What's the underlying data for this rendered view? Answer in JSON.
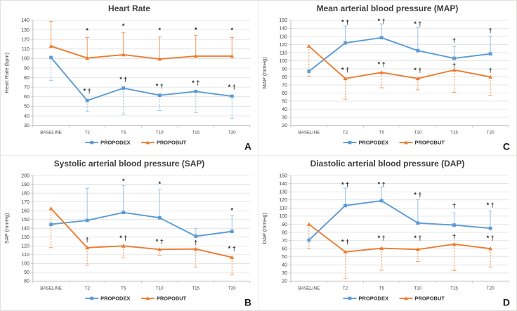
{
  "figure": {
    "panels_order": [
      "A",
      "C",
      "B",
      "D"
    ],
    "colors": {
      "propodex": "#5B9BD5",
      "propobut": "#ED7D31",
      "err_propodex": "#9DC3E6",
      "err_propobut": "#F09A5D",
      "gridline": "#DCDCDC",
      "axis": "#BFBFBF",
      "text": "#404040",
      "annotation": "#262626",
      "panel_letter": "#1A1A1A"
    },
    "legend_labels": [
      "PROPODEX",
      "PROPOBUT"
    ]
  },
  "chart_data": [
    {
      "panel_label": "A",
      "type": "line",
      "title": "Heart Rate",
      "ylabel": "Heart Rate (bpm)",
      "xlabel": "",
      "ylim": [
        30,
        140
      ],
      "ytick_step": 10,
      "grid": true,
      "legend_position": "bottom",
      "categories": [
        "BASELINE",
        "T2",
        "T5",
        "T10",
        "T15",
        "T20"
      ],
      "series": [
        {
          "name": "PROPODEX",
          "color": "#5B9BD5",
          "err_color": "#9DC3E6",
          "marker": "square",
          "values": [
            101,
            56,
            69,
            61.5,
            65.5,
            60.5
          ],
          "err_hi": [
            null,
            null,
            null,
            null,
            null,
            null
          ],
          "err_lo": [
            77,
            44.5,
            41.5,
            45.5,
            43.5,
            37.5
          ]
        },
        {
          "name": "PROPOBUT",
          "color": "#ED7D31",
          "err_color": "#F09A5D",
          "marker": "triangle",
          "values": [
            113,
            100.5,
            104,
            99.5,
            102.5,
            102.5
          ],
          "err_hi": [
            139,
            122,
            127,
            122.5,
            124,
            122
          ],
          "err_lo": [
            null,
            null,
            null,
            null,
            null,
            null
          ]
        }
      ],
      "annotations": [
        {
          "x": "T2",
          "y": 129,
          "text": "*"
        },
        {
          "x": "T5",
          "y": 134,
          "text": "*"
        },
        {
          "x": "T10",
          "y": 129.5,
          "text": "*"
        },
        {
          "x": "T15",
          "y": 130,
          "text": "*"
        },
        {
          "x": "T20",
          "y": 129.5,
          "text": "*"
        },
        {
          "x": "T2",
          "y": 66,
          "text": "* †"
        },
        {
          "x": "T5",
          "y": 78,
          "text": "* †"
        },
        {
          "x": "T10",
          "y": 71,
          "text": "* †"
        },
        {
          "x": "T15",
          "y": 74.5,
          "text": "* †"
        },
        {
          "x": "T20",
          "y": 70,
          "text": "* †"
        }
      ]
    },
    {
      "panel_label": "B",
      "type": "line",
      "title": "Systolic arterial blood pressure (SAP)",
      "ylabel": "SAP (mmHg)",
      "xlabel": "",
      "ylim": [
        80,
        200
      ],
      "ytick_step": 10,
      "grid": true,
      "legend_position": "bottom",
      "categories": [
        "BASELINE",
        "T2",
        "T5",
        "T10",
        "T15",
        "T20"
      ],
      "series": [
        {
          "name": "PROPODEX",
          "color": "#5B9BD5",
          "err_color": "#9DC3E6",
          "marker": "square",
          "values": [
            144.5,
            149,
            158,
            152,
            131,
            136.5
          ],
          "err_hi": [
            null,
            185.5,
            188.5,
            184,
            140,
            154.5
          ],
          "err_lo": [
            null,
            null,
            null,
            null,
            null,
            null
          ]
        },
        {
          "name": "PROPOBUT",
          "color": "#ED7D31",
          "err_color": "#F09A5D",
          "marker": "triangle",
          "values": [
            162.5,
            118,
            120,
            116,
            116.5,
            107
          ],
          "err_hi": [
            null,
            null,
            null,
            null,
            null,
            null
          ],
          "err_lo": [
            118,
            98,
            106.5,
            109.5,
            96,
            87
          ]
        }
      ],
      "annotations": [
        {
          "x": "T5",
          "y": 193.5,
          "text": "*"
        },
        {
          "x": "T10",
          "y": 190.5,
          "text": "*"
        },
        {
          "x": "T20",
          "y": 160.5,
          "text": "*"
        },
        {
          "x": "T2",
          "y": 127,
          "text": "†"
        },
        {
          "x": "T5",
          "y": 129,
          "text": "* †"
        },
        {
          "x": "T10",
          "y": 125,
          "text": "* †"
        },
        {
          "x": "T15",
          "y": 123.5,
          "text": "†"
        },
        {
          "x": "T20",
          "y": 117,
          "text": "* †"
        }
      ]
    },
    {
      "panel_label": "C",
      "type": "line",
      "title": "Mean arterial blood pressure (MAP)",
      "ylabel": "MAP (mmHg)",
      "xlabel": "",
      "ylim": [
        20,
        150
      ],
      "ytick_step": 10,
      "grid": true,
      "legend_position": "bottom",
      "categories": [
        "BASELINE",
        "T2",
        "T5",
        "T10",
        "T15",
        "T20"
      ],
      "series": [
        {
          "name": "PROPODEX",
          "color": "#5B9BD5",
          "err_color": "#9DC3E6",
          "marker": "square",
          "values": [
            87,
            122,
            128.5,
            112.5,
            103,
            108.5
          ],
          "err_hi": [
            null,
            143,
            145.5,
            141,
            117.5,
            130.5
          ],
          "err_lo": [
            null,
            null,
            null,
            null,
            null,
            null
          ]
        },
        {
          "name": "PROPOBUT",
          "color": "#ED7D31",
          "err_color": "#F09A5D",
          "marker": "triangle",
          "values": [
            118,
            78,
            85.5,
            78,
            88.5,
            80
          ],
          "err_hi": [
            null,
            null,
            null,
            null,
            null,
            null
          ],
          "err_lo": [
            81,
            52.5,
            66.5,
            64,
            61,
            57
          ]
        }
      ],
      "annotations": [
        {
          "x": "T2",
          "y": 147.5,
          "text": "* †"
        },
        {
          "x": "T5",
          "y": 149,
          "text": "* †"
        },
        {
          "x": "T10",
          "y": 145.5,
          "text": "* †"
        },
        {
          "x": "T15",
          "y": 125,
          "text": "†"
        },
        {
          "x": "T20",
          "y": 137,
          "text": "†"
        },
        {
          "x": "T2",
          "y": 88.5,
          "text": "* †"
        },
        {
          "x": "T5",
          "y": 95.5,
          "text": "* †"
        },
        {
          "x": "T10",
          "y": 88,
          "text": "* †"
        },
        {
          "x": "T15",
          "y": 94,
          "text": "†"
        },
        {
          "x": "T20",
          "y": 88,
          "text": "†"
        }
      ]
    },
    {
      "panel_label": "D",
      "type": "line",
      "title": "Diastolic arterial blood pressure (DAP)",
      "ylabel": "DAP (mmHg)",
      "xlabel": "",
      "ylim": [
        20,
        150
      ],
      "ytick_step": 10,
      "grid": true,
      "legend_position": "bottom",
      "categories": [
        "BASELINE",
        "T2",
        "T5",
        "T10",
        "T15",
        "T20"
      ],
      "series": [
        {
          "name": "PROPODEX",
          "color": "#5B9BD5",
          "err_color": "#9DC3E6",
          "marker": "square",
          "values": [
            70.5,
            113,
            119,
            91.5,
            89,
            85
          ],
          "err_hi": [
            null,
            134.5,
            136,
            120.5,
            104,
            106.5
          ],
          "err_lo": [
            null,
            null,
            null,
            null,
            null,
            null
          ]
        },
        {
          "name": "PROPOBUT",
          "color": "#ED7D31",
          "err_color": "#F09A5D",
          "marker": "triangle",
          "values": [
            90,
            56,
            60.5,
            59,
            65.5,
            60
          ],
          "err_hi": [
            null,
            null,
            null,
            null,
            null,
            null
          ],
          "err_lo": [
            60,
            23,
            33.5,
            44,
            33,
            37.5
          ]
        }
      ],
      "annotations": [
        {
          "x": "T2",
          "y": 138.5,
          "text": "* †"
        },
        {
          "x": "T5",
          "y": 139,
          "text": "* †"
        },
        {
          "x": "T10",
          "y": 126,
          "text": "* †"
        },
        {
          "x": "T15",
          "y": 112.5,
          "text": "†"
        },
        {
          "x": "T20",
          "y": 113.5,
          "text": "* †"
        },
        {
          "x": "T2",
          "y": 68,
          "text": "* †"
        },
        {
          "x": "T5",
          "y": 73,
          "text": "* †"
        },
        {
          "x": "T10",
          "y": 73,
          "text": "* †"
        },
        {
          "x": "T15",
          "y": 74.5,
          "text": "†"
        },
        {
          "x": "T20",
          "y": 73,
          "text": "* †"
        }
      ]
    }
  ]
}
